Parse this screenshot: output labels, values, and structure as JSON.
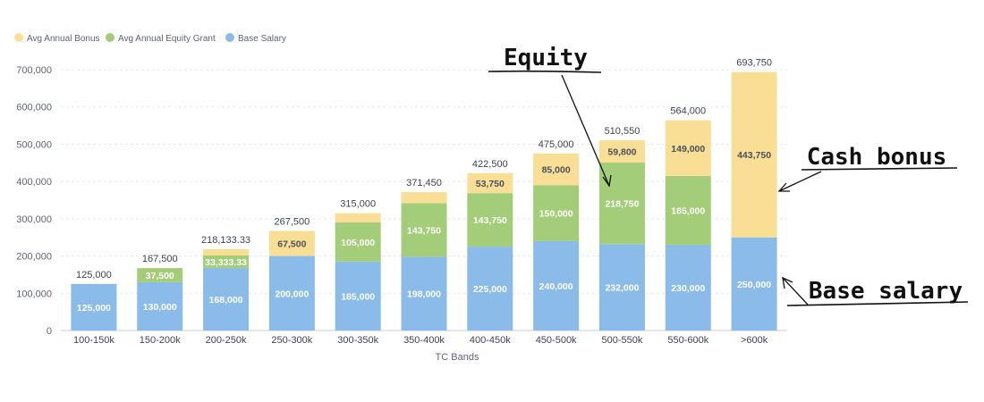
{
  "colors": {
    "bonus": "#f9df96",
    "equity": "#a3cd78",
    "base": "#8bbbe8",
    "grid": "#e6e8ec"
  },
  "legend": [
    {
      "key": "bonus",
      "label": "Avg Annual Bonus"
    },
    {
      "key": "equity",
      "label": "Avg Annual Equity Grant"
    },
    {
      "key": "base",
      "label": "Base Salary"
    }
  ],
  "annotations": {
    "equity": "Equity",
    "cash_bonus": "Cash bonus",
    "base_salary": "Base salary"
  },
  "chart_data": {
    "type": "bar",
    "stacked": true,
    "xlabel": "TC Bands",
    "ylabel": "",
    "ylim": [
      0,
      700000
    ],
    "yticks": [
      {
        "value": 0,
        "label": "0"
      },
      {
        "value": 100000,
        "label": "100,000"
      },
      {
        "value": 200000,
        "label": "200,000"
      },
      {
        "value": 300000,
        "label": "300,000"
      },
      {
        "value": 400000,
        "label": "400,000"
      },
      {
        "value": 500000,
        "label": "500,000"
      },
      {
        "value": 600000,
        "label": "600,000"
      },
      {
        "value": 700000,
        "label": "700,000"
      }
    ],
    "grid": true,
    "legend_position": "top-left",
    "categories": [
      "100-150k",
      "150-200k",
      "200-250k",
      "250-300k",
      "300-350k",
      "350-400k",
      "400-450k",
      "450-500k",
      "500-550k",
      "550-600k",
      ">600k"
    ],
    "series": [
      {
        "name": "Base Salary",
        "key": "base",
        "values": [
          125000,
          130000,
          168000,
          200000,
          185000,
          198000,
          225000,
          240000,
          232000,
          230000,
          250000
        ],
        "labels": [
          "125,000",
          "130,000",
          "168,000",
          "200,000",
          "185,000",
          "198,000",
          "225,000",
          "240,000",
          "232,000",
          "230,000",
          "250,000"
        ]
      },
      {
        "name": "Avg Annual Equity Grant",
        "key": "equity",
        "values": [
          0,
          37500,
          33333.33,
          0,
          105000,
          143750,
          143750,
          150000,
          218750,
          185000,
          0
        ],
        "labels": [
          "",
          "37,500",
          "33,333.33",
          "",
          "105,000",
          "143,750",
          "143,750",
          "150,000",
          "218,750",
          "185,000",
          ""
        ]
      },
      {
        "name": "Avg Annual Bonus",
        "key": "bonus",
        "values": [
          0,
          0,
          16800,
          67500,
          25000,
          29700,
          53750,
          85000,
          59800,
          149000,
          443750
        ],
        "labels": [
          "",
          "",
          "",
          "67,500",
          "",
          "",
          "53,750",
          "85,000",
          "59,800",
          "149,000",
          "443,750"
        ]
      }
    ],
    "totals": [
      "125,000",
      "167,500",
      "218,133.33",
      "267,500",
      "315,000",
      "371,450",
      "422,500",
      "475,000",
      "510,550",
      "564,000",
      "693,750"
    ]
  }
}
